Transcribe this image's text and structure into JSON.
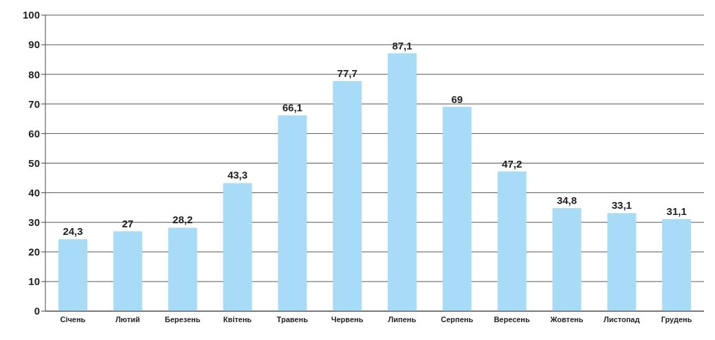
{
  "chart_data": {
    "type": "bar",
    "categories": [
      "Січень",
      "Лютий",
      "Березень",
      "Квітень",
      "Травень",
      "Червень",
      "Липень",
      "Серпень",
      "Вересень",
      "Жовтень",
      "Листопад",
      "Грудень"
    ],
    "values": [
      24.3,
      27,
      28.2,
      43.3,
      66.1,
      77.7,
      87.1,
      69,
      47.2,
      34.8,
      33.1,
      31.1
    ],
    "value_labels": [
      "24,3",
      "27",
      "28,2",
      "43,3",
      "66,1",
      "77,7",
      "87,1",
      "69",
      "47,2",
      "34,8",
      "33,1",
      "31,1"
    ],
    "color": "#a8dcf6",
    "ylim": [
      0,
      100
    ],
    "yticks": [
      0,
      10,
      20,
      30,
      40,
      50,
      60,
      70,
      80,
      90,
      100
    ],
    "grid": "y"
  }
}
